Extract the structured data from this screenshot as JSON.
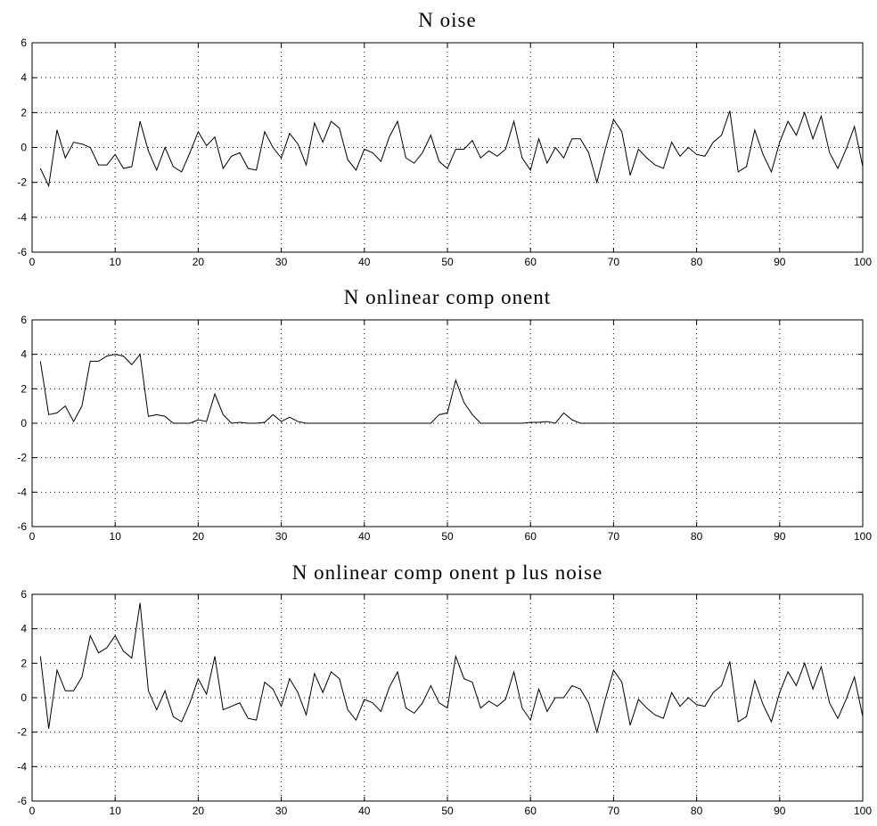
{
  "chart_data": [
    {
      "type": "line",
      "title": "N oise",
      "xlim": [
        0,
        100
      ],
      "ylim": [
        -6,
        6
      ],
      "xticks": [
        0,
        10,
        20,
        30,
        40,
        50,
        60,
        70,
        80,
        90,
        100
      ],
      "yticks": [
        -6,
        -4,
        -2,
        0,
        2,
        4,
        6
      ],
      "grid": true,
      "series": [
        {
          "color": "#000000",
          "x": [
            1,
            2,
            3,
            4,
            5,
            6,
            7,
            8,
            9,
            10,
            11,
            12,
            13,
            14,
            15,
            16,
            17,
            18,
            19,
            20,
            21,
            22,
            23,
            24,
            25,
            26,
            27,
            28,
            29,
            30,
            31,
            32,
            33,
            34,
            35,
            36,
            37,
            38,
            39,
            40,
            41,
            42,
            43,
            44,
            45,
            46,
            47,
            48,
            49,
            50,
            51,
            52,
            53,
            54,
            55,
            56,
            57,
            58,
            59,
            60,
            61,
            62,
            63,
            64,
            65,
            66,
            67,
            68,
            69,
            70,
            71,
            72,
            73,
            74,
            75,
            76,
            77,
            78,
            79,
            80,
            81,
            82,
            83,
            84,
            85,
            86,
            87,
            88,
            89,
            90,
            91,
            92,
            93,
            94,
            95,
            96,
            97,
            98,
            99,
            100
          ],
          "values": [
            -1.2,
            -2.2,
            1.0,
            -0.6,
            0.3,
            0.2,
            0.0,
            -1.0,
            -1.0,
            -0.4,
            -1.2,
            -1.1,
            1.5,
            -0.2,
            -1.3,
            0.0,
            -1.1,
            -1.4,
            -0.3,
            0.9,
            0.1,
            0.6,
            -1.2,
            -0.5,
            -0.3,
            -1.2,
            -1.3,
            0.9,
            0.0,
            -0.6,
            0.8,
            0.2,
            -1.0,
            1.4,
            0.3,
            1.5,
            1.1,
            -0.7,
            -1.3,
            -0.1,
            -0.3,
            -0.8,
            0.6,
            1.5,
            -0.6,
            -0.9,
            -0.3,
            0.7,
            -0.8,
            -1.2,
            -0.1,
            -0.1,
            0.4,
            -0.6,
            -0.2,
            -0.5,
            -0.1,
            1.5,
            -0.6,
            -1.3,
            0.5,
            -0.9,
            0.0,
            -0.6,
            0.5,
            0.5,
            -0.3,
            -2.0,
            -0.1,
            1.6,
            0.9,
            -1.6,
            -0.1,
            -0.6,
            -1.0,
            -1.2,
            0.3,
            -0.5,
            0.0,
            -0.4,
            -0.5,
            0.3,
            0.7,
            2.1,
            -1.4,
            -1.1,
            1.0,
            -0.4,
            -1.4,
            0.3,
            1.5,
            0.7,
            2.0,
            0.5,
            1.8,
            -0.3,
            -1.2,
            -0.1,
            1.2,
            -1.1
          ]
        }
      ]
    },
    {
      "type": "line",
      "title": "N onlinear comp onent",
      "xlim": [
        0,
        100
      ],
      "ylim": [
        -6,
        6
      ],
      "xticks": [
        0,
        10,
        20,
        30,
        40,
        50,
        60,
        70,
        80,
        90,
        100
      ],
      "yticks": [
        -6,
        -4,
        -2,
        0,
        2,
        4,
        6
      ],
      "grid": true,
      "series": [
        {
          "color": "#000000",
          "x": [
            1,
            2,
            3,
            4,
            5,
            6,
            7,
            8,
            9,
            10,
            11,
            12,
            13,
            14,
            15,
            16,
            17,
            18,
            19,
            20,
            21,
            22,
            23,
            24,
            25,
            26,
            27,
            28,
            29,
            30,
            31,
            32,
            33,
            34,
            35,
            36,
            37,
            38,
            39,
            40,
            41,
            42,
            43,
            44,
            45,
            46,
            47,
            48,
            49,
            50,
            51,
            52,
            53,
            54,
            55,
            56,
            57,
            58,
            59,
            60,
            61,
            62,
            63,
            64,
            65,
            66,
            67,
            68,
            69,
            70,
            71,
            72,
            73,
            74,
            75,
            76,
            77,
            78,
            79,
            80,
            81,
            82,
            83,
            84,
            85,
            86,
            87,
            88,
            89,
            90,
            91,
            92,
            93,
            94,
            95,
            96,
            97,
            98,
            99,
            100
          ],
          "values": [
            3.6,
            0.5,
            0.6,
            1.0,
            0.1,
            1.0,
            3.6,
            3.6,
            3.9,
            4.0,
            3.9,
            3.4,
            4.0,
            0.4,
            0.5,
            0.4,
            0.0,
            0.0,
            0.0,
            0.2,
            0.1,
            1.7,
            0.5,
            0.0,
            0.05,
            0.0,
            0.0,
            0.05,
            0.5,
            0.1,
            0.35,
            0.1,
            0.0,
            0.0,
            0.0,
            0.0,
            0.0,
            0.0,
            0.0,
            0.0,
            0.0,
            0.0,
            0.0,
            0.0,
            0.0,
            0.0,
            0.0,
            0.0,
            0.5,
            0.6,
            2.5,
            1.2,
            0.5,
            0.0,
            0.0,
            0.0,
            0.0,
            0.0,
            0.0,
            0.05,
            0.05,
            0.1,
            0.0,
            0.6,
            0.2,
            0.0,
            0.0,
            0.0,
            0.0,
            0.0,
            0.0,
            0.0,
            0.0,
            0.0,
            0.0,
            0.0,
            0.0,
            0.0,
            0.0,
            0.0,
            0.0,
            0.0,
            0.0,
            0.0,
            0.0,
            0.0,
            0.0,
            0.0,
            0.0,
            0.0,
            0.0,
            0.0,
            0.0,
            0.0,
            0.0,
            0.0,
            0.0,
            0.0,
            0.0,
            0.0
          ]
        }
      ]
    },
    {
      "type": "line",
      "title": "N onlinear comp onent p lus noise",
      "xlim": [
        0,
        100
      ],
      "ylim": [
        -6,
        6
      ],
      "xticks": [
        0,
        10,
        20,
        30,
        40,
        50,
        60,
        70,
        80,
        90,
        100
      ],
      "yticks": [
        -6,
        -4,
        -2,
        0,
        2,
        4,
        6
      ],
      "grid": true,
      "series": [
        {
          "color": "#000000",
          "x": [
            1,
            2,
            3,
            4,
            5,
            6,
            7,
            8,
            9,
            10,
            11,
            12,
            13,
            14,
            15,
            16,
            17,
            18,
            19,
            20,
            21,
            22,
            23,
            24,
            25,
            26,
            27,
            28,
            29,
            30,
            31,
            32,
            33,
            34,
            35,
            36,
            37,
            38,
            39,
            40,
            41,
            42,
            43,
            44,
            45,
            46,
            47,
            48,
            49,
            50,
            51,
            52,
            53,
            54,
            55,
            56,
            57,
            58,
            59,
            60,
            61,
            62,
            63,
            64,
            65,
            66,
            67,
            68,
            69,
            70,
            71,
            72,
            73,
            74,
            75,
            76,
            77,
            78,
            79,
            80,
            81,
            82,
            83,
            84,
            85,
            86,
            87,
            88,
            89,
            90,
            91,
            92,
            93,
            94,
            95,
            96,
            97,
            98,
            99,
            100
          ],
          "values": [
            2.4,
            -1.8,
            1.6,
            0.4,
            0.4,
            1.2,
            3.6,
            2.6,
            2.9,
            3.6,
            2.7,
            2.3,
            5.5,
            0.4,
            -0.7,
            0.4,
            -1.1,
            -1.4,
            -0.3,
            1.1,
            0.2,
            2.4,
            -0.7,
            -0.5,
            -0.3,
            -1.2,
            -1.3,
            0.9,
            0.5,
            -0.5,
            1.1,
            0.3,
            -1.0,
            1.4,
            0.3,
            1.5,
            1.1,
            -0.7,
            -1.3,
            -0.1,
            -0.3,
            -0.8,
            0.6,
            1.5,
            -0.6,
            -0.9,
            -0.3,
            0.7,
            -0.3,
            -0.6,
            2.4,
            1.1,
            0.9,
            -0.6,
            -0.2,
            -0.5,
            -0.1,
            1.5,
            -0.6,
            -1.3,
            0.5,
            -0.8,
            0.0,
            0.0,
            0.7,
            0.5,
            -0.3,
            -2.0,
            -0.1,
            1.6,
            0.9,
            -1.6,
            -0.1,
            -0.6,
            -1.0,
            -1.2,
            0.3,
            -0.5,
            0.0,
            -0.4,
            -0.5,
            0.3,
            0.7,
            2.1,
            -1.4,
            -1.1,
            1.0,
            -0.4,
            -1.4,
            0.3,
            1.5,
            0.7,
            2.0,
            0.5,
            1.8,
            -0.3,
            -1.2,
            -0.1,
            1.2,
            -1.1
          ]
        }
      ]
    }
  ]
}
